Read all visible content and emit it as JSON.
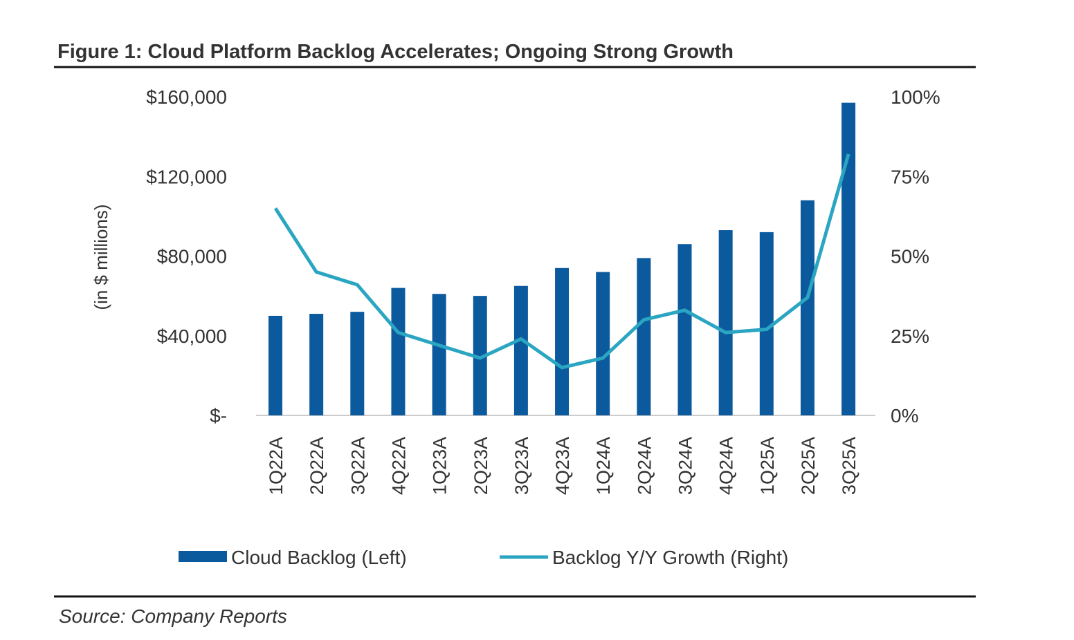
{
  "chart_data": {
    "type": "bar+line",
    "title": "Figure 1: Cloud Platform Backlog Accelerates; Ongoing Strong Growth",
    "ylabel": "(in $ millions)",
    "source": "Source: Company Reports",
    "categories": [
      "1Q22A",
      "2Q22A",
      "3Q22A",
      "4Q22A",
      "1Q23A",
      "2Q23A",
      "3Q23A",
      "4Q23A",
      "1Q24A",
      "2Q24A",
      "3Q24A",
      "4Q24A",
      "1Q25A",
      "2Q25A",
      "3Q25A"
    ],
    "series": [
      {
        "name": "Cloud Backlog (Left)",
        "type": "bar",
        "axis": "left",
        "color": "#0c5a9e",
        "values": [
          50000,
          51000,
          52000,
          64000,
          61000,
          60000,
          65000,
          74000,
          72000,
          79000,
          86000,
          93000,
          92000,
          108000,
          157000
        ]
      },
      {
        "name": "Backlog Y/Y Growth (Right)",
        "type": "line",
        "axis": "right",
        "color": "#2aa5c2",
        "values": [
          65,
          45,
          41,
          26,
          22,
          18,
          24,
          15,
          18,
          30,
          33,
          26,
          27,
          37,
          82
        ]
      }
    ],
    "left_axis": {
      "ylim": [
        0,
        160000
      ],
      "ticks": [
        0,
        40000,
        80000,
        120000,
        160000
      ],
      "tick_labels": [
        "$-",
        "$40,000",
        "$80,000",
        "$120,000",
        "$160,000"
      ]
    },
    "right_axis": {
      "ylim": [
        0,
        100
      ],
      "ticks": [
        0,
        25,
        50,
        75,
        100
      ],
      "tick_labels": [
        "0%",
        "25%",
        "50%",
        "75%",
        "100%"
      ]
    },
    "legend_placement": "bottom",
    "grid": false
  }
}
